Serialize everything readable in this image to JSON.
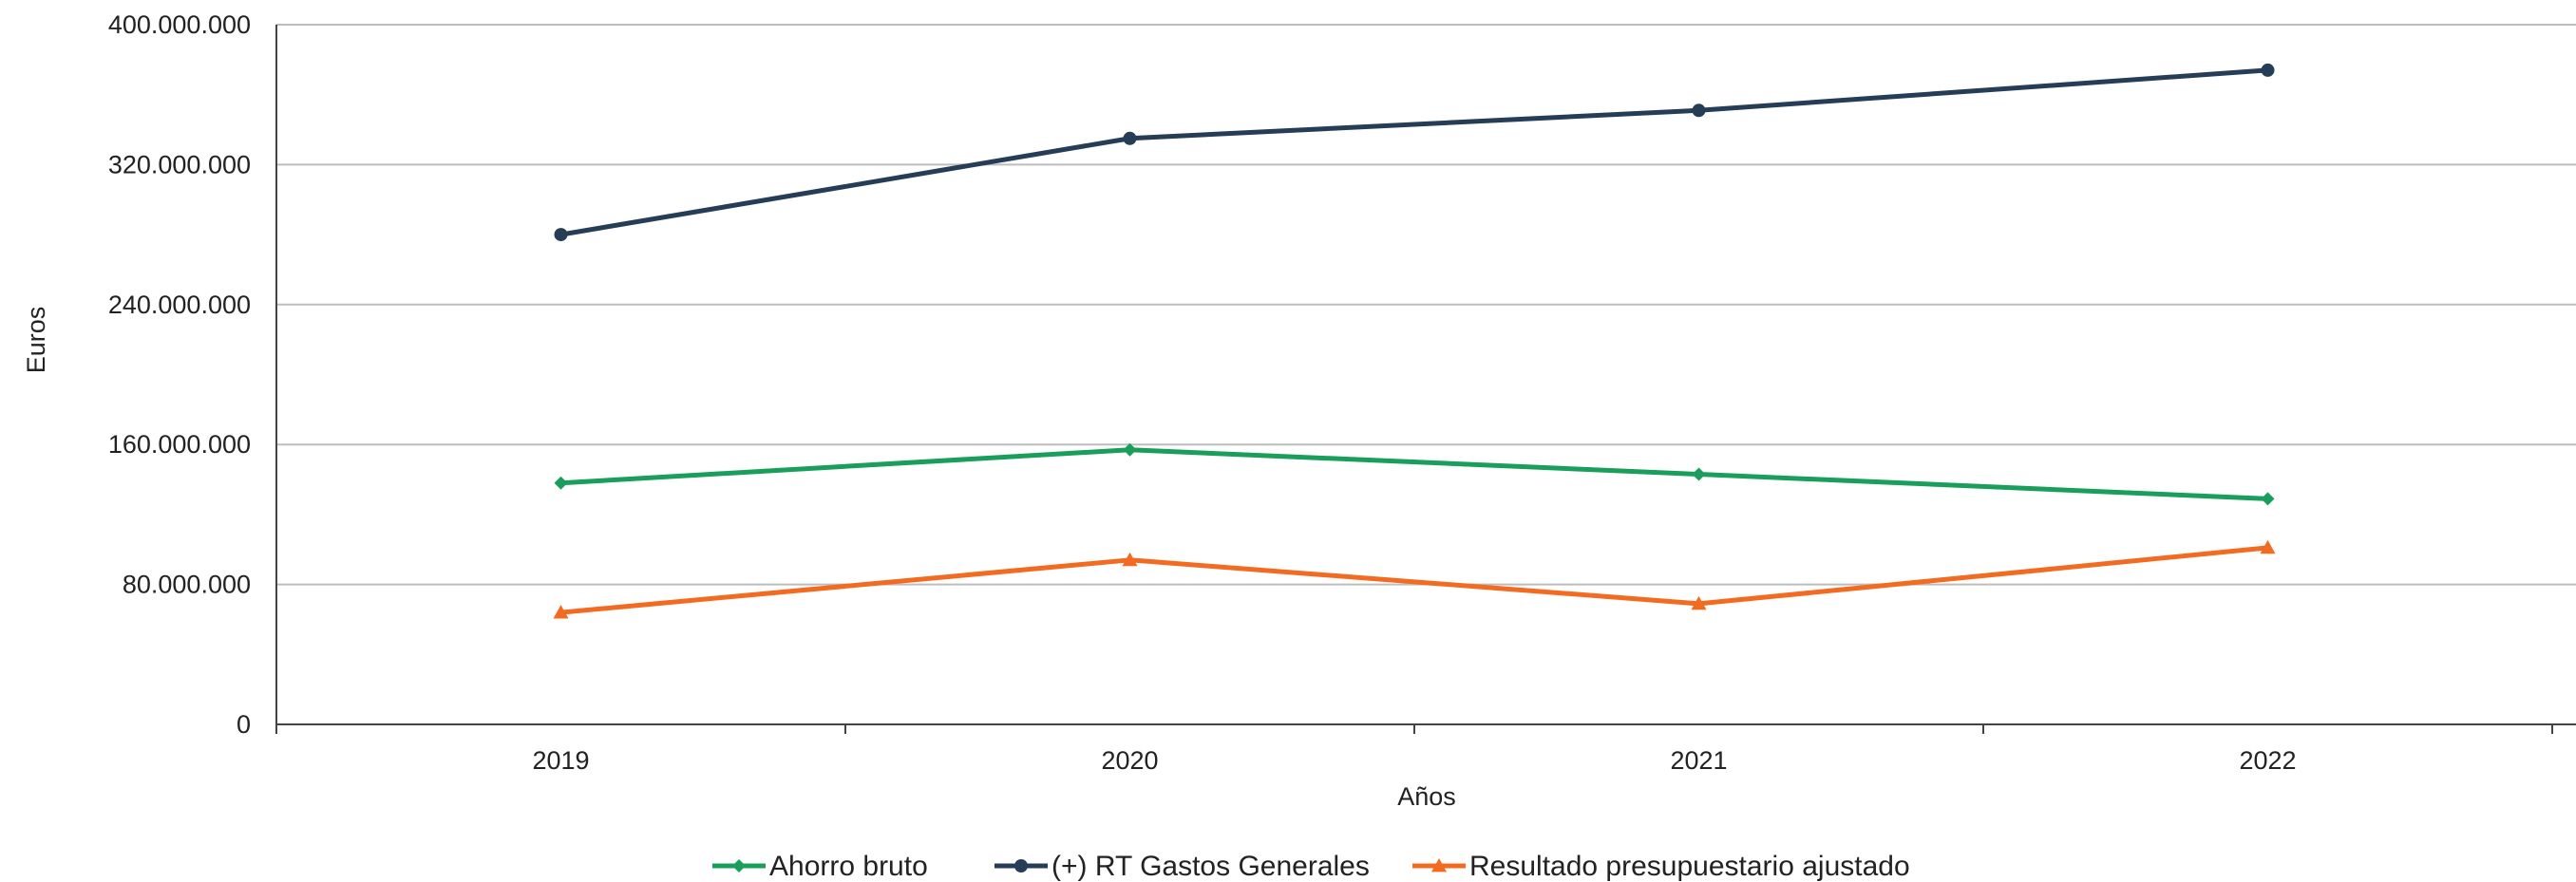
{
  "chart_data": {
    "type": "line",
    "categories": [
      "2019",
      "2020",
      "2021",
      "2022"
    ],
    "series": [
      {
        "name": "Ahorro bruto",
        "values": [
          138000000,
          157000000,
          143000000,
          129000000
        ],
        "color": "#1a9e5c",
        "marker": "diamond"
      },
      {
        "name": "(+) RT Gastos Generales",
        "values": [
          280000000,
          335000000,
          351000000,
          374000000
        ],
        "color": "#253d56",
        "marker": "circle"
      },
      {
        "name": "Resultado presupuestario ajustado",
        "values": [
          64000000,
          94000000,
          69000000,
          101000000
        ],
        "color": "#f26b21",
        "marker": "triangle"
      }
    ],
    "xlabel": "Años",
    "ylabel": "Euros",
    "ylim": [
      0,
      400000000
    ],
    "yticks": [
      0,
      80000000,
      160000000,
      240000000,
      320000000,
      400000000
    ],
    "ytick_labels": [
      "0",
      "80.000.000",
      "160.000.000",
      "240.000.000",
      "320.000.000",
      "400.000.000"
    ],
    "grid": true,
    "legend_position": "bottom"
  }
}
